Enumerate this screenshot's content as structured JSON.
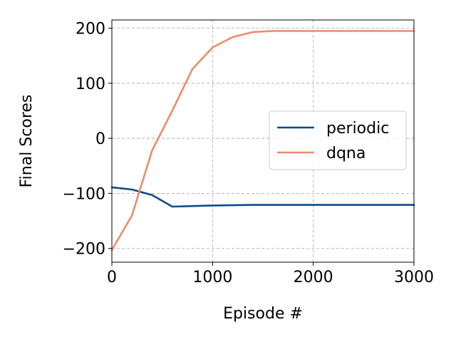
{
  "chart_data": {
    "type": "line",
    "xlabel": "Episode #",
    "ylabel": "Final Scores",
    "xlim": [
      0,
      3000
    ],
    "ylim": [
      -225,
      215
    ],
    "xticks": [
      0,
      1000,
      2000,
      3000
    ],
    "yticks": [
      -200,
      -100,
      0,
      100,
      200
    ],
    "grid": true,
    "legend": "center-right",
    "series": [
      {
        "name": "periodic",
        "color": "#0f4c8a",
        "x": [
          0,
          200,
          400,
          600,
          800,
          1000,
          1400,
          1800,
          2200,
          2600,
          3000
        ],
        "y": [
          -89,
          -93,
          -103,
          -124,
          -123,
          -122,
          -121,
          -121,
          -121,
          -121,
          -121
        ]
      },
      {
        "name": "dqna",
        "color": "#f08a6a",
        "x": [
          0,
          200,
          400,
          600,
          800,
          1000,
          1200,
          1400,
          1600,
          2000,
          2400,
          2800,
          3000
        ],
        "y": [
          -203,
          -140,
          -22,
          50,
          126,
          165,
          184,
          193,
          195,
          195,
          195,
          195,
          195
        ]
      }
    ]
  }
}
